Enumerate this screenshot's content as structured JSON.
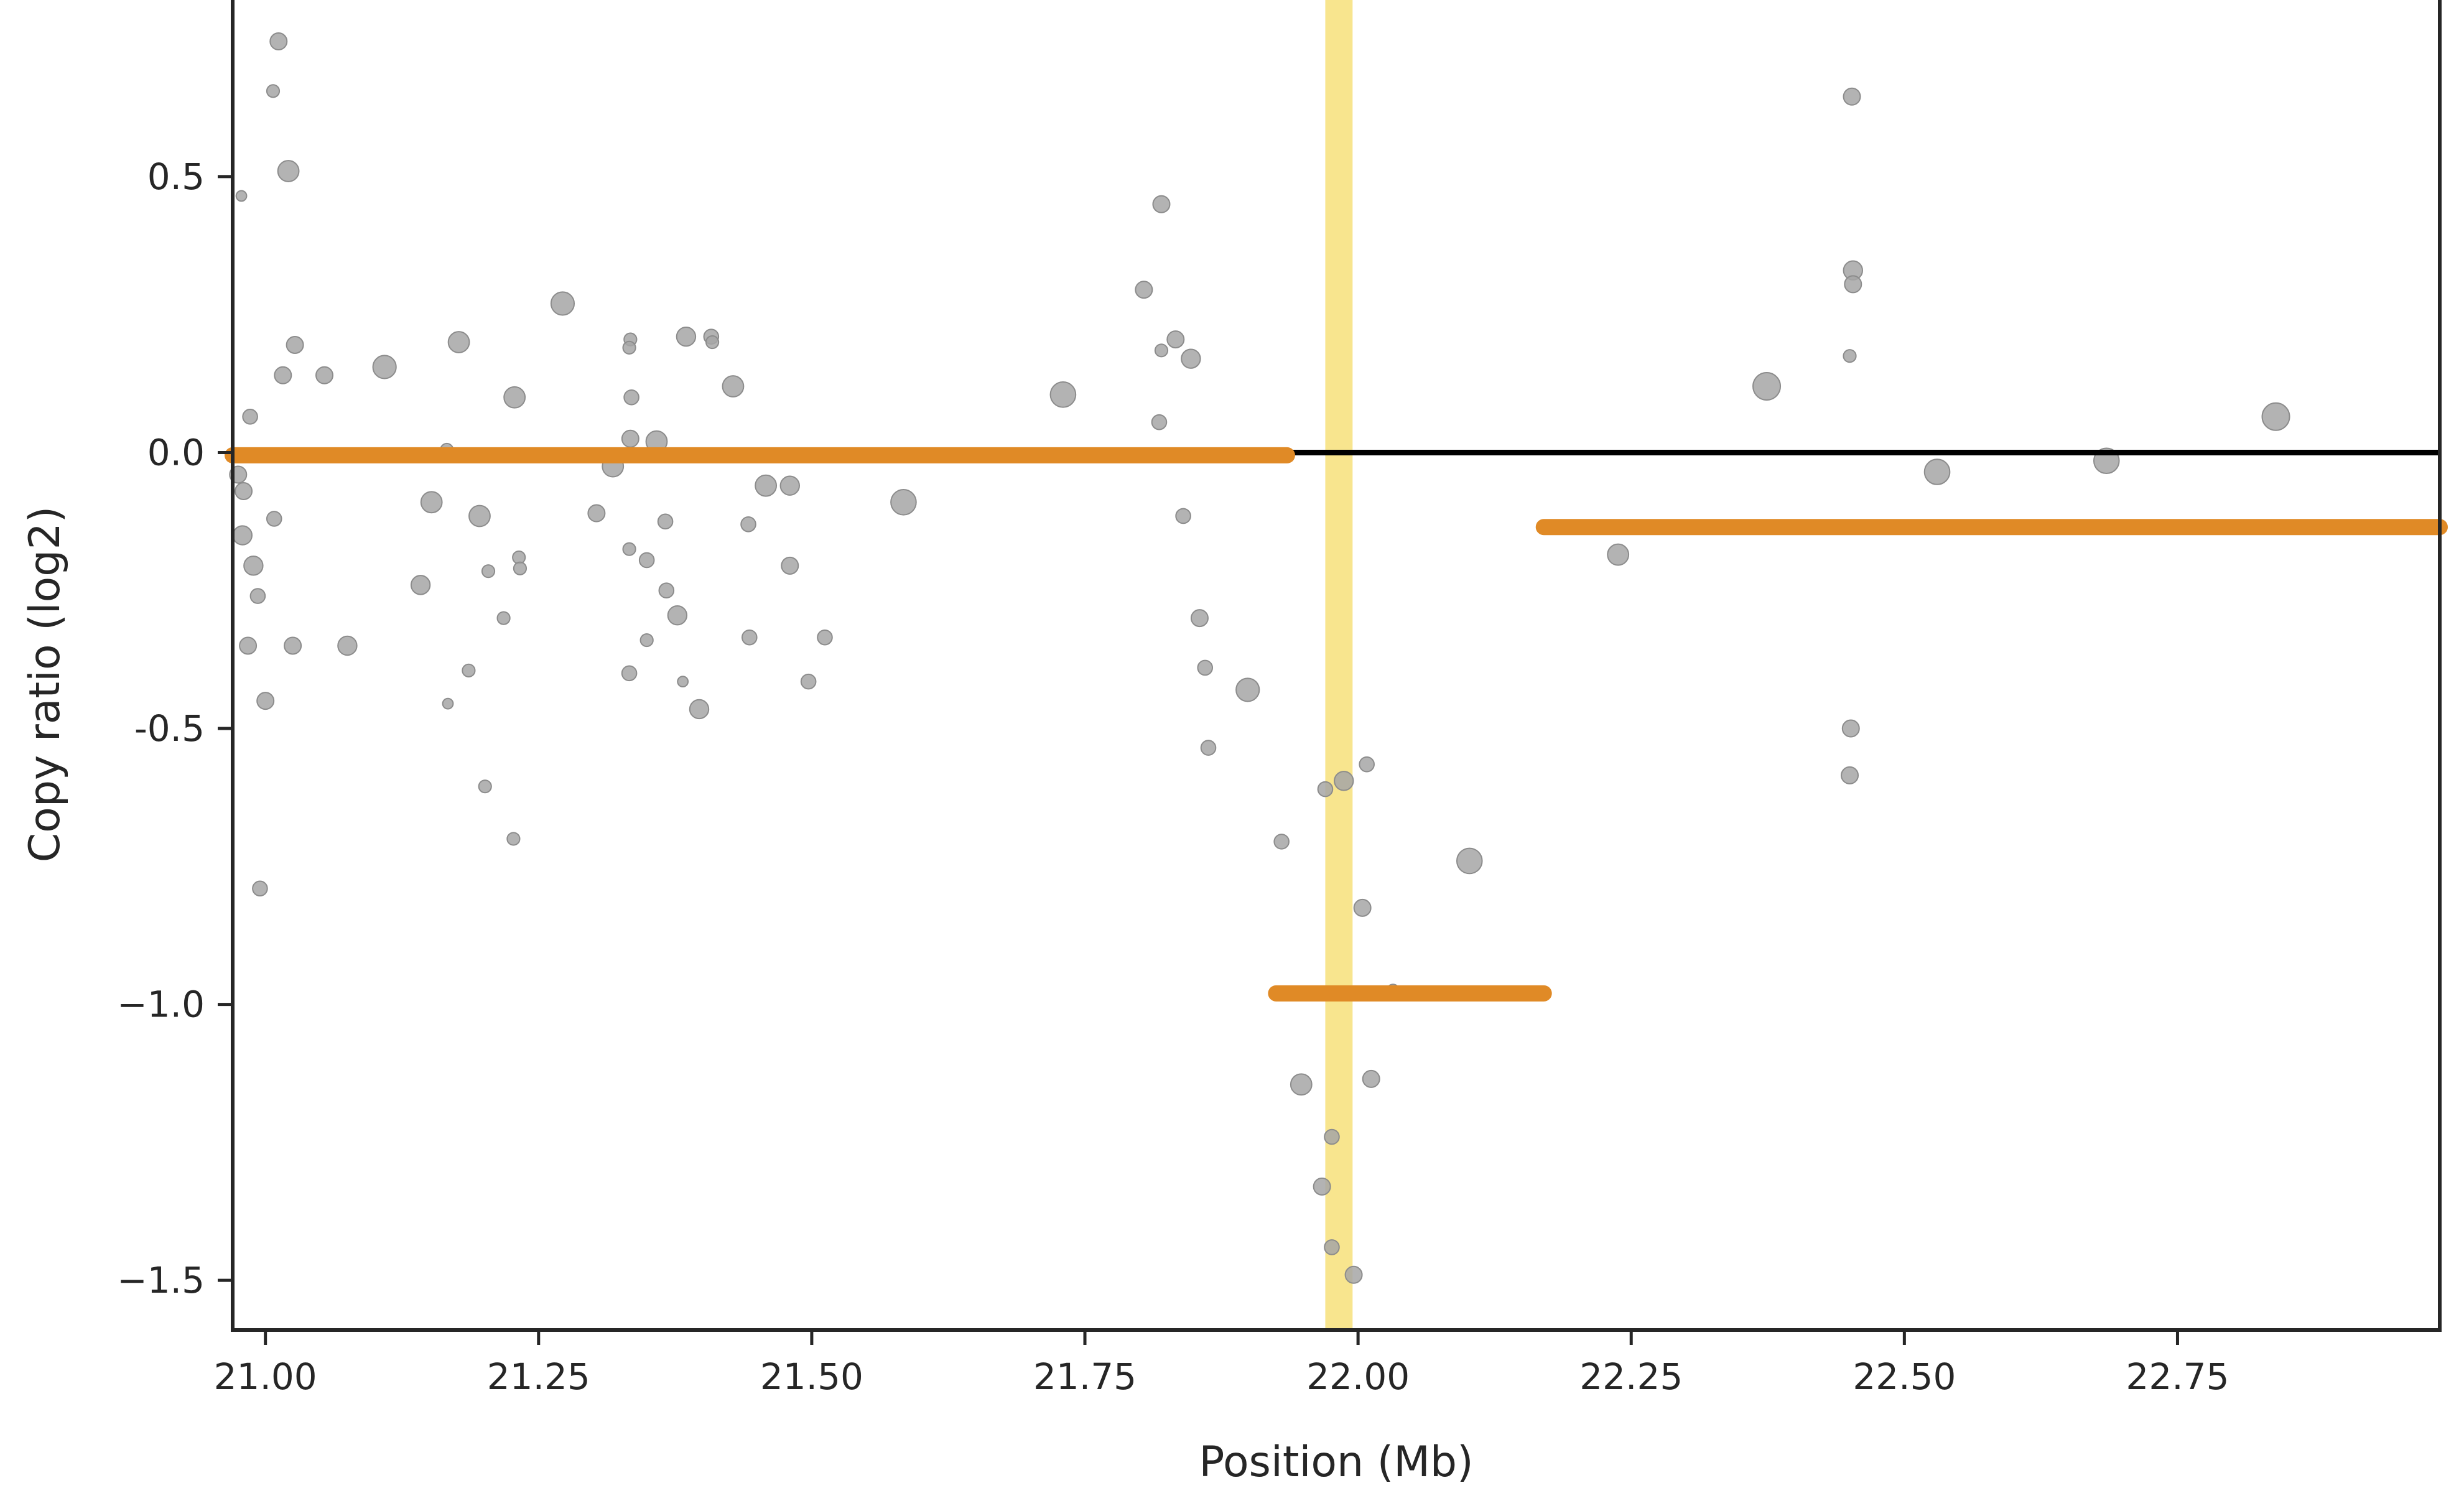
{
  "chart_data": {
    "type": "scatter",
    "xlabel": "Position (Mb)",
    "ylabel": "Copy ratio (log2)",
    "xlim": [
      20.97,
      22.99
    ],
    "ylim": [
      -1.59,
      0.82
    ],
    "x_ticks": [
      21.0,
      21.25,
      21.5,
      21.75,
      22.0,
      22.25,
      22.5,
      22.75
    ],
    "x_tick_labels": [
      "21.00",
      "21.25",
      "21.50",
      "21.75",
      "22.00",
      "22.25",
      "22.50",
      "22.75"
    ],
    "y_ticks": [
      0.5,
      0.0,
      -0.5,
      -1.0,
      -1.5
    ],
    "y_tick_labels": [
      "0.5",
      "0.0",
      "-0.5",
      "−1.0",
      "−1.5"
    ],
    "reference_line_y": 0.0,
    "highlight_region": {
      "x_start": 21.97,
      "x_end": 21.995
    },
    "colors": {
      "points": "#a6a6a6",
      "point_edge": "#8c8c8c",
      "segments": "#e08a26",
      "highlight": "#f6df72",
      "reference_line": "#000000",
      "axes": "#262626"
    },
    "points": [
      {
        "x": 21.012,
        "y": 0.745,
        "w": 0.5
      },
      {
        "x": 21.007,
        "y": 0.655,
        "w": 0.3
      },
      {
        "x": 21.021,
        "y": 0.51,
        "w": 0.7
      },
      {
        "x": 20.978,
        "y": 0.465,
        "w": 0.2
      },
      {
        "x": 21.027,
        "y": 0.195,
        "w": 0.5
      },
      {
        "x": 21.016,
        "y": 0.14,
        "w": 0.5
      },
      {
        "x": 21.054,
        "y": 0.14,
        "w": 0.5
      },
      {
        "x": 21.109,
        "y": 0.155,
        "w": 0.8
      },
      {
        "x": 20.986,
        "y": 0.065,
        "w": 0.4
      },
      {
        "x": 20.975,
        "y": -0.04,
        "w": 0.5
      },
      {
        "x": 20.98,
        "y": -0.07,
        "w": 0.5
      },
      {
        "x": 20.979,
        "y": -0.15,
        "w": 0.6
      },
      {
        "x": 21.008,
        "y": -0.12,
        "w": 0.4
      },
      {
        "x": 20.989,
        "y": -0.205,
        "w": 0.6
      },
      {
        "x": 20.993,
        "y": -0.26,
        "w": 0.4
      },
      {
        "x": 20.984,
        "y": -0.35,
        "w": 0.5
      },
      {
        "x": 21.025,
        "y": -0.35,
        "w": 0.5
      },
      {
        "x": 21.075,
        "y": -0.35,
        "w": 0.6
      },
      {
        "x": 21.0,
        "y": -0.45,
        "w": 0.5
      },
      {
        "x": 20.995,
        "y": -0.79,
        "w": 0.4
      },
      {
        "x": 21.177,
        "y": 0.2,
        "w": 0.7
      },
      {
        "x": 21.166,
        "y": 0.005,
        "w": 0.3
      },
      {
        "x": 21.152,
        "y": -0.09,
        "w": 0.7
      },
      {
        "x": 21.196,
        "y": -0.115,
        "w": 0.7
      },
      {
        "x": 21.228,
        "y": 0.1,
        "w": 0.7
      },
      {
        "x": 21.142,
        "y": -0.24,
        "w": 0.6
      },
      {
        "x": 21.204,
        "y": -0.215,
        "w": 0.3
      },
      {
        "x": 21.232,
        "y": -0.19,
        "w": 0.3
      },
      {
        "x": 21.233,
        "y": -0.21,
        "w": 0.3
      },
      {
        "x": 21.218,
        "y": -0.3,
        "w": 0.3
      },
      {
        "x": 21.186,
        "y": -0.395,
        "w": 0.3
      },
      {
        "x": 21.167,
        "y": -0.455,
        "w": 0.2
      },
      {
        "x": 21.201,
        "y": -0.605,
        "w": 0.3
      },
      {
        "x": 21.227,
        "y": -0.7,
        "w": 0.3
      },
      {
        "x": 21.272,
        "y": 0.27,
        "w": 0.8
      },
      {
        "x": 21.334,
        "y": 0.205,
        "w": 0.3
      },
      {
        "x": 21.333,
        "y": 0.19,
        "w": 0.3
      },
      {
        "x": 21.385,
        "y": 0.21,
        "w": 0.6
      },
      {
        "x": 21.408,
        "y": 0.21,
        "w": 0.4
      },
      {
        "x": 21.409,
        "y": 0.2,
        "w": 0.3
      },
      {
        "x": 21.335,
        "y": 0.1,
        "w": 0.4
      },
      {
        "x": 21.428,
        "y": 0.12,
        "w": 0.7
      },
      {
        "x": 21.334,
        "y": 0.025,
        "w": 0.5
      },
      {
        "x": 21.358,
        "y": 0.02,
        "w": 0.7
      },
      {
        "x": 21.318,
        "y": -0.025,
        "w": 0.7
      },
      {
        "x": 21.303,
        "y": -0.11,
        "w": 0.5
      },
      {
        "x": 21.366,
        "y": -0.125,
        "w": 0.4
      },
      {
        "x": 21.442,
        "y": -0.13,
        "w": 0.4
      },
      {
        "x": 21.458,
        "y": -0.06,
        "w": 0.7
      },
      {
        "x": 21.48,
        "y": -0.06,
        "w": 0.6
      },
      {
        "x": 21.333,
        "y": -0.175,
        "w": 0.3
      },
      {
        "x": 21.349,
        "y": -0.195,
        "w": 0.4
      },
      {
        "x": 21.48,
        "y": -0.205,
        "w": 0.5
      },
      {
        "x": 21.367,
        "y": -0.25,
        "w": 0.4
      },
      {
        "x": 21.377,
        "y": -0.295,
        "w": 0.6
      },
      {
        "x": 21.349,
        "y": -0.34,
        "w": 0.3
      },
      {
        "x": 21.443,
        "y": -0.335,
        "w": 0.4
      },
      {
        "x": 21.512,
        "y": -0.335,
        "w": 0.4
      },
      {
        "x": 21.333,
        "y": -0.4,
        "w": 0.4
      },
      {
        "x": 21.382,
        "y": -0.415,
        "w": 0.2
      },
      {
        "x": 21.497,
        "y": -0.415,
        "w": 0.4
      },
      {
        "x": 21.397,
        "y": -0.465,
        "w": 0.6
      },
      {
        "x": 21.584,
        "y": -0.09,
        "w": 0.9
      },
      {
        "x": 21.73,
        "y": 0.105,
        "w": 0.9
      },
      {
        "x": 21.82,
        "y": 0.45,
        "w": 0.5
      },
      {
        "x": 21.804,
        "y": 0.295,
        "w": 0.5
      },
      {
        "x": 21.833,
        "y": 0.205,
        "w": 0.5
      },
      {
        "x": 21.82,
        "y": 0.185,
        "w": 0.3
      },
      {
        "x": 21.847,
        "y": 0.17,
        "w": 0.6
      },
      {
        "x": 21.818,
        "y": 0.055,
        "w": 0.4
      },
      {
        "x": 21.84,
        "y": -0.115,
        "w": 0.4
      },
      {
        "x": 21.855,
        "y": -0.3,
        "w": 0.5
      },
      {
        "x": 21.86,
        "y": -0.39,
        "w": 0.4
      },
      {
        "x": 21.899,
        "y": -0.43,
        "w": 0.8
      },
      {
        "x": 21.863,
        "y": -0.535,
        "w": 0.4
      },
      {
        "x": 21.93,
        "y": -0.705,
        "w": 0.4
      },
      {
        "x": 21.97,
        "y": -0.61,
        "w": 0.4
      },
      {
        "x": 21.987,
        "y": -0.595,
        "w": 0.6
      },
      {
        "x": 22.008,
        "y": -0.565,
        "w": 0.4
      },
      {
        "x": 22.004,
        "y": -0.825,
        "w": 0.5
      },
      {
        "x": 22.102,
        "y": -0.74,
        "w": 0.9
      },
      {
        "x": 22.032,
        "y": -0.975,
        "w": 0.3
      },
      {
        "x": 21.948,
        "y": -1.145,
        "w": 0.7
      },
      {
        "x": 22.012,
        "y": -1.135,
        "w": 0.5
      },
      {
        "x": 21.976,
        "y": -1.24,
        "w": 0.4
      },
      {
        "x": 21.967,
        "y": -1.33,
        "w": 0.5
      },
      {
        "x": 21.976,
        "y": -1.44,
        "w": 0.4
      },
      {
        "x": 21.996,
        "y": -1.49,
        "w": 0.5
      },
      {
        "x": 22.238,
        "y": -0.185,
        "w": 0.7
      },
      {
        "x": 22.374,
        "y": 0.12,
        "w": 1.0
      },
      {
        "x": 22.452,
        "y": 0.645,
        "w": 0.5
      },
      {
        "x": 22.453,
        "y": 0.33,
        "w": 0.6
      },
      {
        "x": 22.453,
        "y": 0.305,
        "w": 0.5
      },
      {
        "x": 22.45,
        "y": 0.175,
        "w": 0.3
      },
      {
        "x": 22.451,
        "y": -0.5,
        "w": 0.5
      },
      {
        "x": 22.45,
        "y": -0.585,
        "w": 0.5
      },
      {
        "x": 22.53,
        "y": -0.035,
        "w": 0.9
      },
      {
        "x": 22.685,
        "y": -0.015,
        "w": 0.9
      },
      {
        "x": 22.84,
        "y": 0.065,
        "w": 1.0
      }
    ],
    "segments": [
      {
        "x_start": 20.97,
        "x_end": 21.935,
        "y": -0.005
      },
      {
        "x_start": 21.925,
        "x_end": 22.17,
        "y": -0.98
      },
      {
        "x_start": 22.17,
        "x_end": 22.99,
        "y": -0.135
      }
    ]
  }
}
